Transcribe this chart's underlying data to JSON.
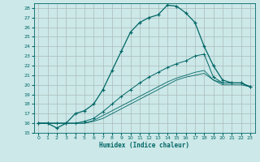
{
  "xlabel": "Humidex (Indice chaleur)",
  "bg_color": "#cce8e8",
  "line_color": "#006666",
  "grid_color": "#aabbbb",
  "xlim": [
    -0.5,
    23.5
  ],
  "ylim": [
    15,
    28.5
  ],
  "yticks": [
    15,
    16,
    17,
    18,
    19,
    20,
    21,
    22,
    23,
    24,
    25,
    26,
    27,
    28
  ],
  "xticks": [
    0,
    1,
    2,
    3,
    4,
    5,
    6,
    7,
    8,
    9,
    10,
    11,
    12,
    13,
    14,
    15,
    16,
    17,
    18,
    19,
    20,
    21,
    22,
    23
  ],
  "line1_x": [
    0,
    1,
    2,
    3,
    4,
    5,
    6,
    7,
    8,
    9,
    10,
    11,
    12,
    13,
    14,
    15,
    16,
    17,
    18,
    19,
    20,
    21,
    22,
    23
  ],
  "line1_y": [
    16,
    16,
    15.5,
    16,
    17,
    17.3,
    18,
    19.5,
    21.5,
    23.5,
    25.5,
    26.5,
    27,
    27.3,
    28.3,
    28.2,
    27.5,
    26.5,
    24,
    22,
    20.5,
    20.2,
    20.2,
    19.8
  ],
  "line2_x": [
    0,
    1,
    2,
    3,
    4,
    5,
    6,
    7,
    8,
    9,
    10,
    11,
    12,
    13,
    14,
    15,
    16,
    17,
    18,
    19,
    20,
    21,
    22,
    23
  ],
  "line2_y": [
    16,
    16,
    16,
    16,
    16,
    16.2,
    16.5,
    17.2,
    18,
    18.8,
    19.5,
    20.2,
    20.8,
    21.3,
    21.8,
    22.2,
    22.5,
    23,
    23.2,
    20.8,
    20.2,
    20.2,
    20.2,
    19.8
  ],
  "line3_x": [
    0,
    1,
    2,
    3,
    4,
    5,
    6,
    7,
    8,
    9,
    10,
    11,
    12,
    13,
    14,
    15,
    16,
    17,
    18,
    19,
    20,
    21,
    22,
    23
  ],
  "line3_y": [
    16,
    16,
    16,
    16,
    16,
    16,
    16.3,
    16.8,
    17.3,
    17.8,
    18.3,
    18.8,
    19.3,
    19.8,
    20.3,
    20.7,
    21.0,
    21.3,
    21.5,
    20.5,
    20.2,
    20.2,
    20.2,
    19.8
  ],
  "line4_x": [
    0,
    1,
    2,
    3,
    4,
    5,
    6,
    7,
    8,
    9,
    10,
    11,
    12,
    13,
    14,
    15,
    16,
    17,
    18,
    19,
    20,
    21,
    22,
    23
  ],
  "line4_y": [
    16,
    16,
    16,
    16,
    16,
    16,
    16.2,
    16.5,
    17.0,
    17.5,
    18.0,
    18.5,
    19.0,
    19.5,
    20.0,
    20.5,
    20.8,
    21.0,
    21.2,
    20.5,
    20.0,
    20.0,
    20.0,
    19.8
  ]
}
